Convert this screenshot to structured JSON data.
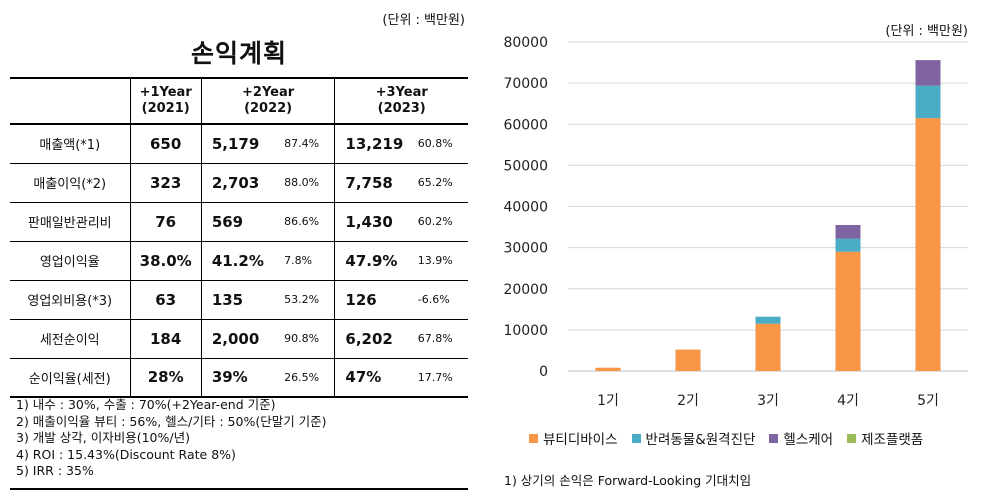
{
  "table": {
    "unit": "(단위 : 백만원)",
    "title": "손익계획",
    "header": [
      {
        "l1": "+1Year",
        "l2": "(2021)"
      },
      {
        "l1": "+2Year",
        "l2": "(2022)"
      },
      {
        "l1": "+3Year",
        "l2": "(2023)"
      }
    ],
    "rows": [
      {
        "label": "매출액(*1)",
        "y1": "650",
        "y2": "5,179",
        "y2p": "87.4%",
        "y3": "13,219",
        "y3p": "60.8%"
      },
      {
        "label": "매출이익(*2)",
        "y1": "323",
        "y2": "2,703",
        "y2p": "88.0%",
        "y3": "7,758",
        "y3p": "65.2%"
      },
      {
        "label": "판매일반관리비",
        "y1": "76",
        "y2": "569",
        "y2p": "86.6%",
        "y3": "1,430",
        "y3p": "60.2%"
      },
      {
        "label": "영업이익율",
        "y1": "38.0%",
        "y2": "41.2%",
        "y2p": "7.8%",
        "y3": "47.9%",
        "y3p": "13.9%"
      },
      {
        "label": "영업외비용(*3)",
        "y1": "63",
        "y2": "135",
        "y2p": "53.2%",
        "y3": "126",
        "y3p": "-6.6%"
      },
      {
        "label": "세전순이익",
        "y1": "184",
        "y2": "2,000",
        "y2p": "90.8%",
        "y3": "6,202",
        "y3p": "67.8%"
      },
      {
        "label": "순이익율(세전)",
        "y1": "28%",
        "y2": "39%",
        "y2p": "26.5%",
        "y3": "47%",
        "y3p": "17.7%"
      }
    ],
    "notes": [
      "1) 내수 : 30%, 수출 : 70%(+2Year-end 기준)",
      "2) 매출이익율 뷰티 : 56%, 헬스/기타 : 50%(단말기 기준)",
      "3) 개발 상각, 이자비용(10%/년)",
      "4) ROI : 15.43%(Discount Rate 8%)",
      "5) IRR : 35%"
    ]
  },
  "chart_unit": "(단위 : 백만원)",
  "footnote": "1) 상기의 손익은 Forward-Looking 기대치임",
  "chart_data": {
    "type": "bar",
    "stacked": true,
    "categories": [
      "1기",
      "2기",
      "3기",
      "4기",
      "5기"
    ],
    "series": [
      {
        "name": "뷰티디바이스",
        "color": "#F79646",
        "values": [
          800,
          5200,
          11500,
          29000,
          61500
        ]
      },
      {
        "name": "반려동물&원격진단",
        "color": "#4BACC6",
        "values": [
          0,
          0,
          1700,
          3200,
          7900
        ]
      },
      {
        "name": "헬스케어",
        "color": "#8064A2",
        "values": [
          0,
          0,
          0,
          3300,
          6200
        ]
      },
      {
        "name": "제조플랫폼",
        "color": "#9BBB59",
        "values": [
          0,
          0,
          0,
          0,
          0
        ]
      }
    ],
    "ylim": [
      0,
      80000
    ],
    "yticks": [
      0,
      10000,
      20000,
      30000,
      40000,
      50000,
      60000,
      70000,
      80000
    ],
    "grid": true,
    "legend_position": "bottom"
  }
}
